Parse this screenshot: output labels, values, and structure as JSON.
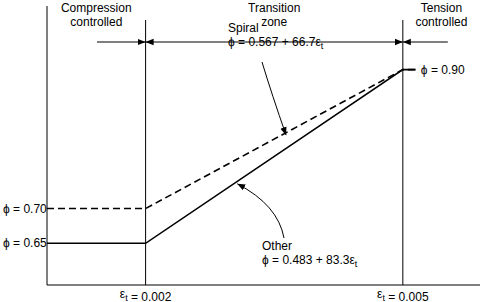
{
  "chart_data": {
    "type": "line",
    "tick_labels": false,
    "xlim": [
      0.00085,
      0.0059
    ],
    "ylim": [
      0.59,
      0.98
    ],
    "series": [
      {
        "name": "Spiral",
        "equation": "ϕ = 0.567 + 66.7εt",
        "x": [
          0.00085,
          0.002,
          0.005,
          0.00515
        ],
        "values": [
          0.7,
          0.7,
          0.9,
          0.9
        ],
        "color": "#000000",
        "line_style": "dashed"
      },
      {
        "name": "Other",
        "equation": "ϕ = 0.483 + 83.3εt",
        "x": [
          0.00085,
          0.002,
          0.005,
          0.00515
        ],
        "values": [
          0.65,
          0.65,
          0.9,
          0.9
        ],
        "color": "#000000",
        "line_style": "solid"
      }
    ],
    "zones": [
      {
        "label": "Compression controlled"
      },
      {
        "label": "Transition zone"
      },
      {
        "label": "Tension controlled"
      }
    ],
    "boundaries": [
      {
        "x": 0.002,
        "label": "εt = 0.002"
      },
      {
        "x": 0.005,
        "label": "εt = 0.005"
      }
    ],
    "level_labels": [
      {
        "y": 0.7,
        "label": "ϕ = 0.70",
        "side": "left"
      },
      {
        "y": 0.65,
        "label": "ϕ = 0.65",
        "side": "left"
      },
      {
        "y": 0.9,
        "label": "ϕ = 0.90",
        "side": "right"
      }
    ]
  }
}
